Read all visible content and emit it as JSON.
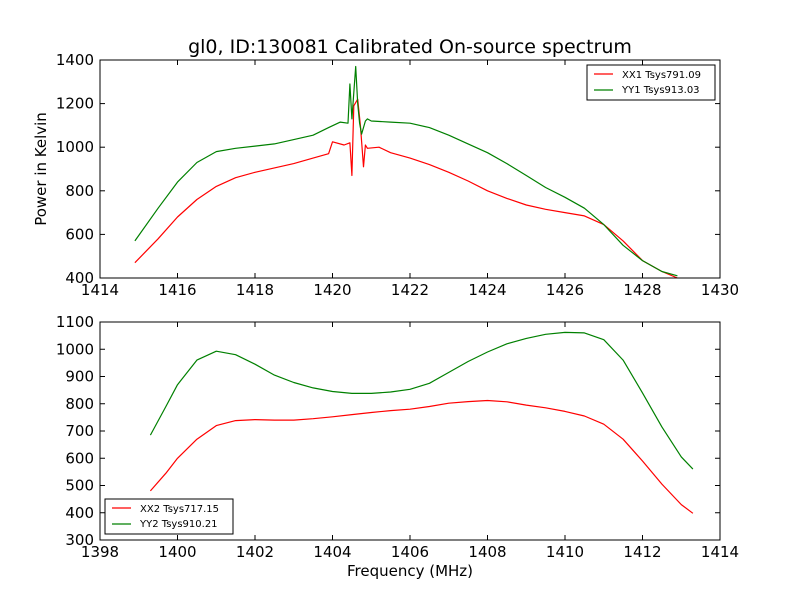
{
  "chart_data": [
    {
      "type": "line",
      "title": "gl0, ID:130081 Calibrated On-source spectrum",
      "xlabel": "",
      "ylabel": "Power in Kelvin",
      "xlim": [
        1414,
        1430
      ],
      "ylim": [
        400,
        1400
      ],
      "xticks": [
        "1414",
        "1416",
        "1418",
        "1420",
        "1422",
        "1424",
        "1426",
        "1428",
        "1430"
      ],
      "yticks": [
        "400",
        "600",
        "800",
        "1000",
        "1200",
        "1400"
      ],
      "legend_position": "top-right",
      "series": [
        {
          "name": "XX1 Tsys791.09",
          "color": "#ff0000",
          "x": [
            1414.9,
            1415.5,
            1416.0,
            1416.5,
            1417.0,
            1417.5,
            1418.0,
            1418.5,
            1419.0,
            1419.5,
            1419.9,
            1420.0,
            1420.3,
            1420.45,
            1420.5,
            1420.55,
            1420.65,
            1420.72,
            1420.8,
            1420.85,
            1420.9,
            1421.2,
            1421.5,
            1422.0,
            1422.5,
            1423.0,
            1423.5,
            1424.0,
            1424.5,
            1425.0,
            1425.5,
            1426.0,
            1426.5,
            1427.0,
            1427.5,
            1428.0,
            1428.5,
            1428.9
          ],
          "y": [
            470,
            580,
            680,
            760,
            820,
            860,
            885,
            905,
            925,
            950,
            970,
            1025,
            1010,
            1020,
            870,
            1190,
            1220,
            1100,
            910,
            1010,
            995,
            1000,
            975,
            950,
            920,
            885,
            845,
            800,
            765,
            735,
            715,
            700,
            685,
            645,
            570,
            480,
            430,
            400
          ]
        },
        {
          "name": "YY1 Tsys913.03",
          "color": "#008000",
          "x": [
            1414.9,
            1415.5,
            1416.0,
            1416.5,
            1417.0,
            1417.5,
            1418.0,
            1418.5,
            1419.0,
            1419.5,
            1419.9,
            1420.2,
            1420.4,
            1420.45,
            1420.5,
            1420.6,
            1420.65,
            1420.7,
            1420.75,
            1420.85,
            1420.9,
            1421.0,
            1421.5,
            1422.0,
            1422.5,
            1423.0,
            1423.5,
            1424.0,
            1424.5,
            1425.0,
            1425.5,
            1426.0,
            1426.5,
            1427.0,
            1427.5,
            1428.0,
            1428.5,
            1428.9
          ],
          "y": [
            570,
            720,
            840,
            930,
            980,
            995,
            1005,
            1015,
            1035,
            1055,
            1090,
            1115,
            1110,
            1290,
            1130,
            1370,
            1200,
            1110,
            1060,
            1120,
            1130,
            1120,
            1115,
            1110,
            1090,
            1055,
            1015,
            975,
            925,
            870,
            815,
            770,
            720,
            645,
            550,
            480,
            430,
            410
          ]
        }
      ]
    },
    {
      "type": "line",
      "title": "",
      "xlabel": "Frequency (MHz)",
      "ylabel": "",
      "xlim": [
        1398,
        1414
      ],
      "ylim": [
        300,
        1100
      ],
      "xticks": [
        "1398",
        "1400",
        "1402",
        "1404",
        "1406",
        "1408",
        "1410",
        "1412",
        "1414"
      ],
      "yticks": [
        "300",
        "400",
        "500",
        "600",
        "700",
        "800",
        "900",
        "1000",
        "1100"
      ],
      "legend_position": "bottom-left",
      "series": [
        {
          "name": "XX2 Tsys717.15",
          "color": "#ff0000",
          "x": [
            1399.3,
            1399.7,
            1400.0,
            1400.5,
            1401.0,
            1401.5,
            1402.0,
            1402.5,
            1403.0,
            1403.5,
            1404.0,
            1404.5,
            1405.0,
            1405.5,
            1406.0,
            1406.5,
            1407.0,
            1407.5,
            1408.0,
            1408.5,
            1409.0,
            1409.5,
            1410.0,
            1410.5,
            1411.0,
            1411.5,
            1412.0,
            1412.5,
            1413.0,
            1413.3
          ],
          "y": [
            480,
            545,
            600,
            670,
            720,
            738,
            742,
            740,
            740,
            745,
            752,
            760,
            768,
            775,
            780,
            790,
            802,
            808,
            812,
            807,
            795,
            785,
            772,
            755,
            725,
            670,
            590,
            505,
            430,
            398
          ]
        },
        {
          "name": "YY2 Tsys910.21",
          "color": "#008000",
          "x": [
            1399.3,
            1399.7,
            1400.0,
            1400.5,
            1401.0,
            1401.5,
            1402.0,
            1402.5,
            1403.0,
            1403.5,
            1404.0,
            1404.5,
            1405.0,
            1405.5,
            1406.0,
            1406.5,
            1407.0,
            1407.5,
            1408.0,
            1408.5,
            1409.0,
            1409.5,
            1410.0,
            1410.5,
            1411.0,
            1411.5,
            1412.0,
            1412.5,
            1413.0,
            1413.3
          ],
          "y": [
            685,
            790,
            870,
            960,
            993,
            980,
            945,
            905,
            878,
            858,
            845,
            838,
            838,
            843,
            853,
            875,
            915,
            955,
            990,
            1020,
            1040,
            1055,
            1062,
            1060,
            1035,
            960,
            840,
            715,
            605,
            560
          ]
        }
      ]
    }
  ]
}
